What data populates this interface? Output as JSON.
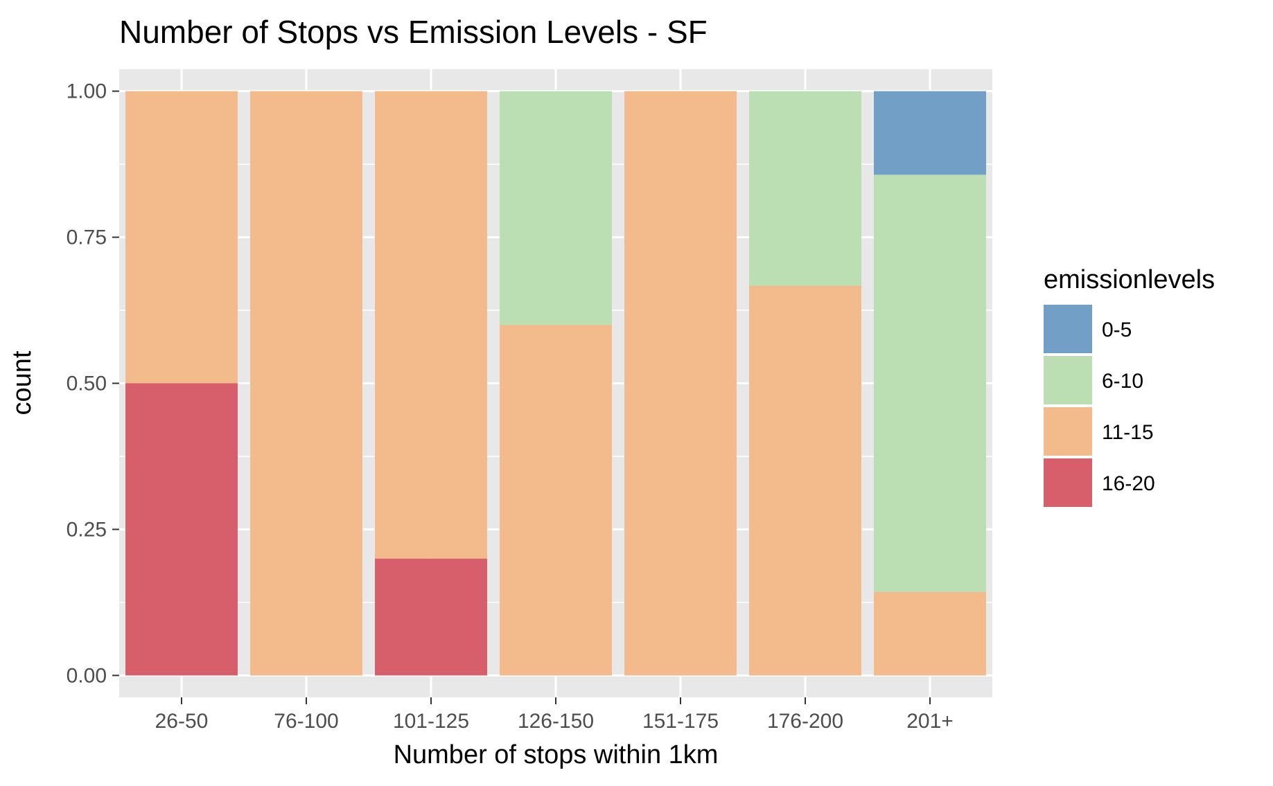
{
  "chart_data": {
    "type": "bar",
    "stacked": true,
    "title": "Number of Stops vs Emission Levels - SF",
    "xlabel": "Number of stops within 1km",
    "ylabel": "count",
    "ylim": [
      -0.0375,
      1.0375
    ],
    "yticks": [
      0.0,
      0.25,
      0.5,
      0.75,
      1.0
    ],
    "ytick_labels": [
      "0.00",
      "0.25",
      "0.50",
      "0.75",
      "1.00"
    ],
    "grid": true,
    "legend_position": "right",
    "legend_title": "emissionlevels",
    "categories": [
      "26-50",
      "76-100",
      "101-125",
      "126-150",
      "151-175",
      "176-200",
      "201+"
    ],
    "series": [
      {
        "name": "0-5",
        "color": "#729fc6",
        "values": [
          0,
          0,
          0,
          0,
          0,
          0,
          0.143
        ]
      },
      {
        "name": "6-10",
        "color": "#bbdfb3",
        "values": [
          0,
          0,
          0,
          0.4,
          0,
          0.333,
          0.714
        ]
      },
      {
        "name": "11-15",
        "color": "#f3ba8b",
        "values": [
          0.5,
          1,
          0.8,
          0.6,
          1,
          0.667,
          0.143
        ]
      },
      {
        "name": "16-20",
        "color": "#d75f6b",
        "values": [
          0.5,
          0,
          0.2,
          0,
          0,
          0,
          0
        ]
      }
    ],
    "stack_order_bottom_to_top": [
      "16-20",
      "11-15",
      "6-10",
      "0-5"
    ],
    "panel_background": "#e8e8e8",
    "grid_color": "#ffffff"
  }
}
